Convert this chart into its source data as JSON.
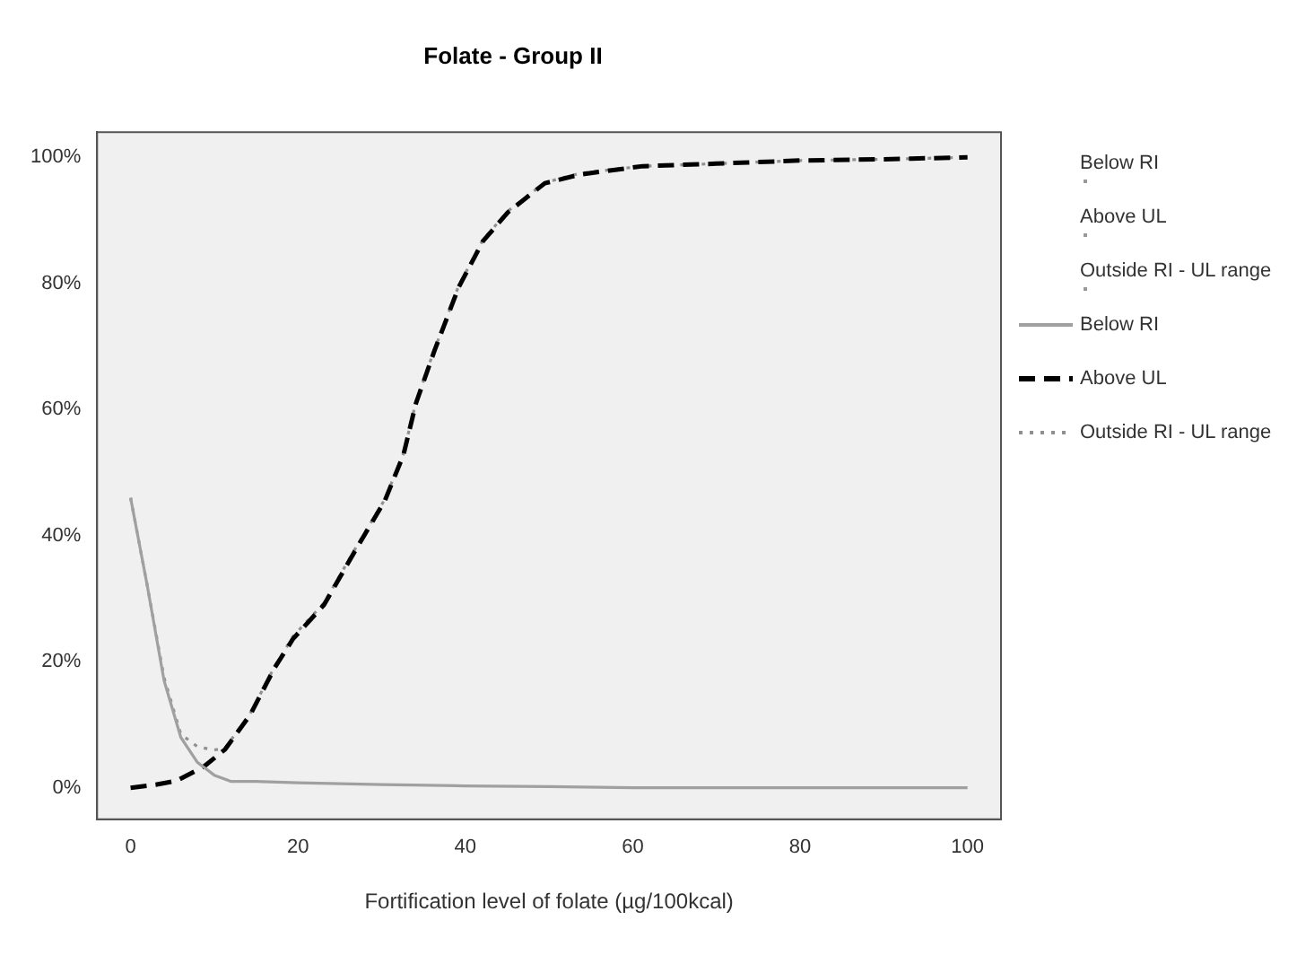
{
  "chart_data": {
    "type": "line",
    "title": "Folate - Group II",
    "xlabel": "Fortification level of folate (µg/100kcal)",
    "xlim": [
      -4,
      104
    ],
    "xticks": [
      0,
      20,
      40,
      60,
      80,
      100
    ],
    "ylim": [
      -5,
      104
    ],
    "yticks": [
      {
        "value": 0,
        "label": "0%"
      },
      {
        "value": 20,
        "label": "20%"
      },
      {
        "value": 40,
        "label": "40%"
      },
      {
        "value": 60,
        "label": "60%"
      },
      {
        "value": 80,
        "label": "80%"
      },
      {
        "value": 100,
        "label": "100%"
      }
    ],
    "annotations": [
      "Below RI",
      "Above UL",
      "Outside RI - UL range"
    ],
    "grid": false,
    "legend": "right",
    "marker": "none",
    "series": [
      {
        "name": "Below RI",
        "color": "#a0a0a0",
        "line_style": "solid",
        "x": [
          0,
          2,
          4,
          6,
          8,
          10,
          12,
          15,
          20,
          30,
          40,
          50,
          60,
          80,
          100
        ],
        "values": [
          46,
          32,
          17,
          8,
          4,
          2,
          1,
          1,
          0.8,
          0.5,
          0.3,
          0.2,
          0,
          0,
          0
        ]
      },
      {
        "name": "Above UL",
        "color": "#000000",
        "line_style": "dashed",
        "x": [
          0,
          3,
          5.5,
          8.8,
          11.3,
          14.3,
          17.2,
          19.4,
          23.1,
          26.7,
          30.4,
          32.6,
          34.1,
          36.3,
          39.2,
          42.1,
          45.1,
          49.5,
          53.8,
          61.2,
          70,
          80,
          90,
          100
        ],
        "values": [
          0,
          0.5,
          1.1,
          3.4,
          6.1,
          11.6,
          19,
          23.6,
          29,
          37.3,
          45.6,
          52.8,
          61,
          69.3,
          79.4,
          86.7,
          91.3,
          95.9,
          97.3,
          98.6,
          99,
          99.5,
          99.7,
          100
        ]
      },
      {
        "name": "Outside RI - UL range",
        "color": "#909090",
        "line_style": "dotted",
        "x": [
          0,
          2,
          4,
          6,
          8,
          10,
          11.3,
          14.3,
          17.2,
          19.4,
          23.1,
          26.7,
          30.4,
          32.6,
          34.1,
          36.3,
          39.2,
          42.1,
          45.1,
          49.5,
          53.8,
          61.2,
          70,
          80,
          90,
          100
        ],
        "values": [
          46,
          32,
          17.5,
          8.5,
          6.5,
          6,
          6.3,
          11.8,
          19.2,
          24,
          29.3,
          37.6,
          45.8,
          53,
          61.2,
          69.5,
          79.6,
          86.9,
          91.5,
          96,
          97.5,
          98.6,
          99,
          99.5,
          99.7,
          100
        ]
      }
    ]
  }
}
